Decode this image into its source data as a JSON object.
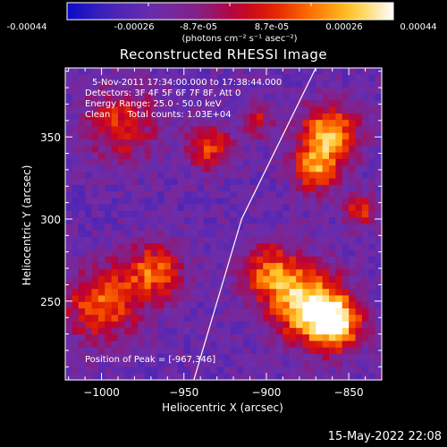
{
  "colorbar": {
    "ticks": [
      "-0.00044",
      "-0.00026",
      "-8.7e-05",
      "8.7e-05",
      "0.00026",
      "0.00044"
    ],
    "unit": "(photons cm⁻² s⁻¹ asec⁻²)",
    "range": [
      -0.00044,
      0.00044
    ]
  },
  "chart_data": {
    "type": "heatmap",
    "title": "Reconstructed RHESSI Image",
    "xlabel": "Heliocentric X (arcsec)",
    "ylabel": "Heliocentric Y (arcsec)",
    "xlim": [
      -1022,
      -830
    ],
    "ylim": [
      202,
      392
    ],
    "xticks": [
      -1000,
      -950,
      -900,
      -850
    ],
    "yticks": [
      250,
      300,
      350
    ],
    "xtick_labels": [
      "−1000",
      "−950",
      "−900",
      "−850"
    ],
    "ytick_labels": [
      "250",
      "300",
      "350"
    ],
    "limb_line": {
      "x": [
        -944,
        -915,
        -870
      ],
      "y": [
        202,
        300,
        392
      ]
    },
    "annotations": [
      "5-Nov-2011 17:34:00.000 to 17:38:44.000",
      "Detectors: 3F 4F 5F 6F 7F 8F, Att 0",
      "Energy Range: 25.0 - 50.0 keV",
      "Clean      Total counts: 1.03E+04"
    ],
    "peak_label": "Position of Peak = [-967,346]",
    "peak_position": [
      -967,
      346
    ]
  },
  "footer": {
    "timestamp": "15-May-2022 22:08"
  }
}
